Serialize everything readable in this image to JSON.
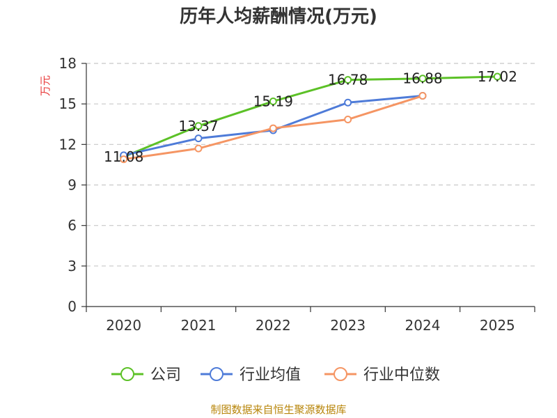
{
  "chart_data": {
    "type": "line",
    "title": "历年人均薪酬情况(万元)",
    "ylabel": "万元",
    "xlabel": "",
    "categories": [
      "2020",
      "2021",
      "2022",
      "2023",
      "2024",
      "2025"
    ],
    "ylim": [
      0,
      18
    ],
    "yticks": [
      0,
      3,
      6,
      9,
      12,
      15,
      18
    ],
    "grid": true,
    "legend_position": "bottom",
    "series": [
      {
        "name": "公司",
        "color": "#5cc127",
        "values": [
          11.08,
          13.37,
          15.19,
          16.78,
          16.88,
          17.02
        ],
        "labels": [
          "11.08",
          "13.37",
          "15.19",
          "16.78",
          "16.88",
          "17.02"
        ]
      },
      {
        "name": "行业均值",
        "color": "#4e7bd8",
        "values": [
          11.2,
          12.45,
          13.05,
          15.1,
          15.6,
          null
        ],
        "labels": []
      },
      {
        "name": "行业中位数",
        "color": "#f59563",
        "values": [
          10.9,
          11.7,
          13.2,
          13.85,
          15.6,
          null
        ],
        "labels": []
      }
    ],
    "source": "制图数据来自恒生聚源数据库",
    "source_color": "#b8860b",
    "ylabel_color": "#e83a3a"
  }
}
